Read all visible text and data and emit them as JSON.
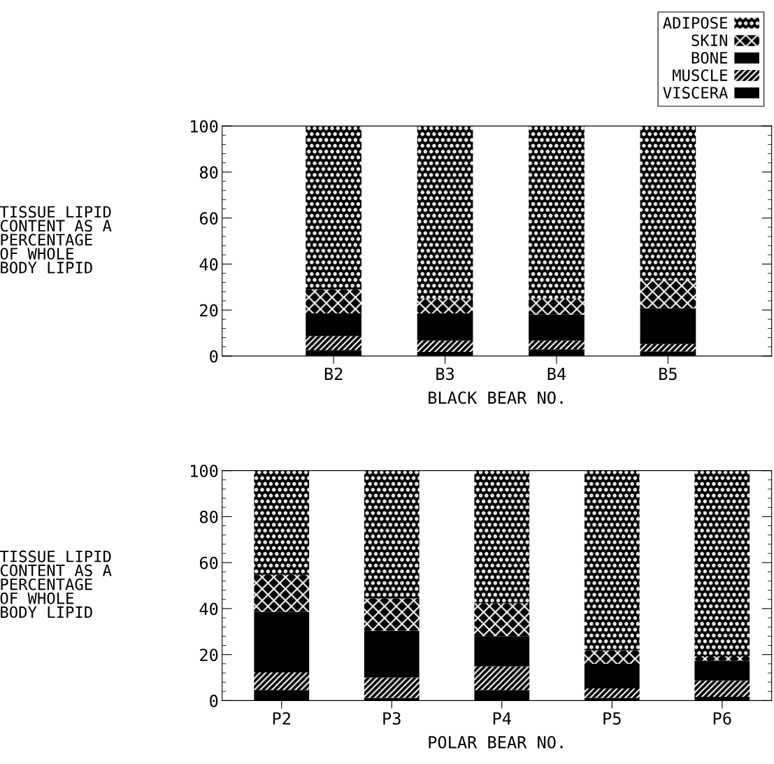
{
  "chart_data": [
    {
      "type": "bar",
      "stacked": true,
      "ylabel": "TISSUE LIPID\nCONTENT AS A\nPERCENTAGE\nOF WHOLE\nBODY LIPID",
      "xlabel": "BLACK BEAR NO.",
      "categories": [
        "B2",
        "B3",
        "B4",
        "B5"
      ],
      "ylim": [
        0,
        100
      ],
      "yticks": [
        0,
        20,
        40,
        60,
        80,
        100
      ],
      "legend": "top right",
      "grid": false,
      "series": [
        {
          "name": "VISCERA",
          "color": "#000000",
          "values": [
            2.6,
            1.8,
            2.9,
            2.0
          ]
        },
        {
          "name": "MUSCLE",
          "color": "#000000",
          "values": [
            6.1,
            4.9,
            3.8,
            3.2
          ]
        },
        {
          "name": "BONE",
          "color": "#000000",
          "values": [
            9.8,
            11.8,
            11.3,
            15.5
          ]
        },
        {
          "name": "SKIN",
          "color": "#000000",
          "values": [
            10.5,
            6.5,
            7.0,
            12.3
          ]
        },
        {
          "name": "ADIPOSE",
          "color": "#000000",
          "values": [
            71.0,
            75.0,
            75.0,
            67.0
          ]
        }
      ]
    },
    {
      "type": "bar",
      "stacked": true,
      "ylabel": "TISSUE LIPID\nCONTENT AS A\nPERCENTAGE\nOF WHOLE\nBODY LIPID",
      "xlabel": "POLAR BEAR NO.",
      "categories": [
        "P2",
        "P3",
        "P4",
        "P5",
        "P6"
      ],
      "ylim": [
        0,
        100
      ],
      "yticks": [
        0,
        20,
        40,
        60,
        80,
        100
      ],
      "grid": false,
      "series": [
        {
          "color": "#000000",
          "values": [
            4.6,
            1.2,
            4.6,
            1.2,
            1.6
          ]
        },
        {
          "color": "#000000",
          "values": [
            7.7,
            8.8,
            10.3,
            4.1,
            7.1
          ]
        },
        {
          "color": "#000000",
          "values": [
            26.3,
            20.4,
            13.1,
            10.6,
            8.7
          ]
        },
        {
          "color": "#000000",
          "values": [
            16.1,
            14.0,
            14.3,
            6.0,
            1.9
          ]
        },
        {
          "color": "#000000",
          "values": [
            45.3,
            55.6,
            57.7,
            78.1,
            80.7
          ]
        }
      ]
    }
  ]
}
